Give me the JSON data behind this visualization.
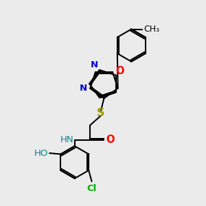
{
  "bg_color": "#ebebeb",
  "bond_color": "#000000",
  "atom_colors": {
    "N": "#0000cc",
    "O": "#ff0000",
    "S": "#999900",
    "Cl": "#00aa00",
    "HO": "#008888",
    "H": "#008888",
    "C": "#000000"
  },
  "font_size": 9.5,
  "lw": 1.5
}
